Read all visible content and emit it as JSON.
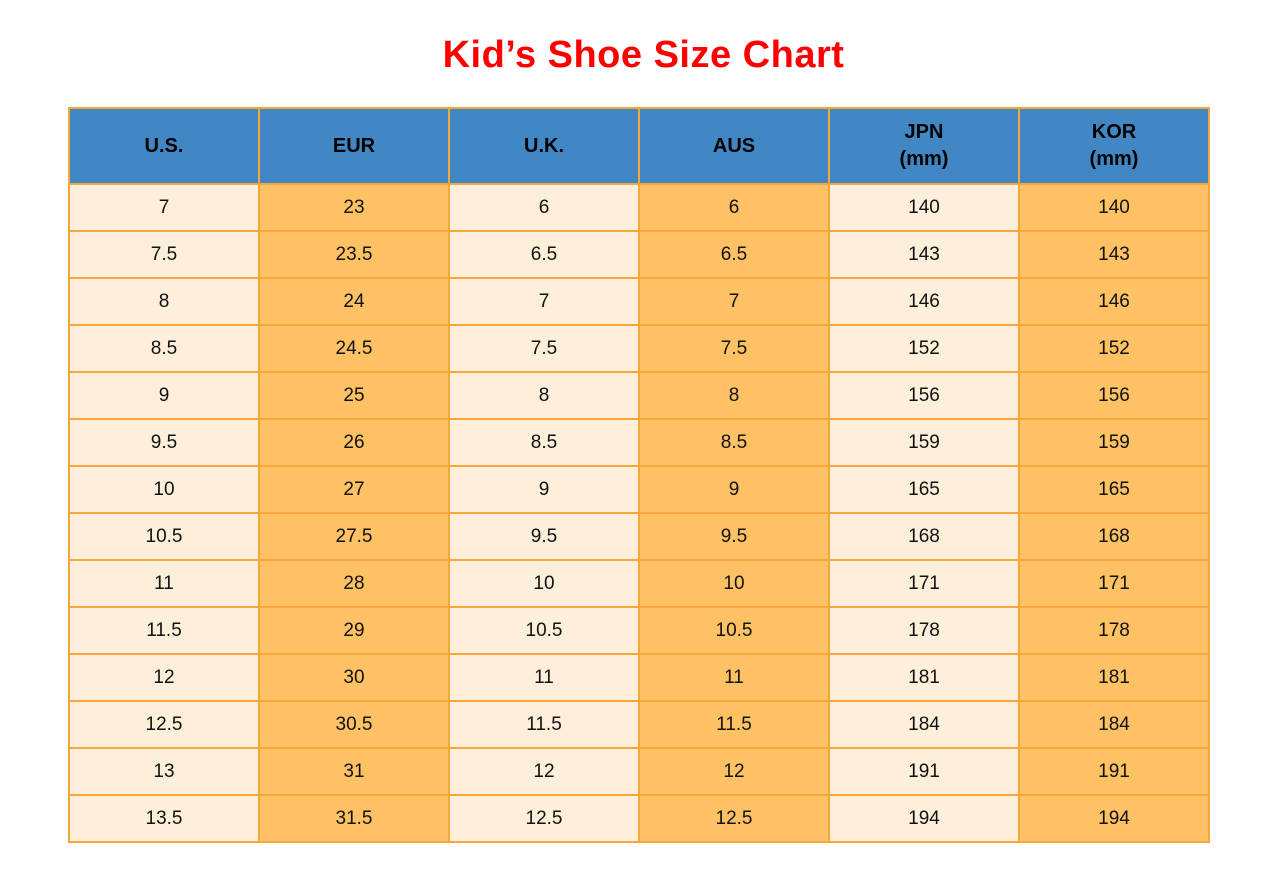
{
  "title": "Kid’s Shoe Size Chart",
  "colors": {
    "title_color": "#fe0000",
    "header_bg": "#4187c4",
    "cell_cream": "#fdefd9",
    "cell_orange": "#fec164",
    "border_color": "#f7a63b",
    "text_color": "#111111"
  },
  "chart_data": {
    "type": "table",
    "title": "Kid’s Shoe Size Chart",
    "columns": [
      {
        "label": "U.S.",
        "sub": ""
      },
      {
        "label": "EUR",
        "sub": ""
      },
      {
        "label": "U.K.",
        "sub": ""
      },
      {
        "label": "AUS",
        "sub": ""
      },
      {
        "label": "JPN",
        "sub": "(mm)"
      },
      {
        "label": "KOR",
        "sub": "(mm)"
      }
    ],
    "rows": [
      [
        "7",
        "23",
        "6",
        "6",
        "140",
        "140"
      ],
      [
        "7.5",
        "23.5",
        "6.5",
        "6.5",
        "143",
        "143"
      ],
      [
        "8",
        "24",
        "7",
        "7",
        "146",
        "146"
      ],
      [
        "8.5",
        "24.5",
        "7.5",
        "7.5",
        "152",
        "152"
      ],
      [
        "9",
        "25",
        "8",
        "8",
        "156",
        "156"
      ],
      [
        "9.5",
        "26",
        "8.5",
        "8.5",
        "159",
        "159"
      ],
      [
        "10",
        "27",
        "9",
        "9",
        "165",
        "165"
      ],
      [
        "10.5",
        "27.5",
        "9.5",
        "9.5",
        "168",
        "168"
      ],
      [
        "11",
        "28",
        "10",
        "10",
        "171",
        "171"
      ],
      [
        "11.5",
        "29",
        "10.5",
        "10.5",
        "178",
        "178"
      ],
      [
        "12",
        "30",
        "11",
        "11",
        "181",
        "181"
      ],
      [
        "12.5",
        "30.5",
        "11.5",
        "11.5",
        "184",
        "184"
      ],
      [
        "13",
        "31",
        "12",
        "12",
        "191",
        "191"
      ],
      [
        "13.5",
        "31.5",
        "12.5",
        "12.5",
        "194",
        "194"
      ]
    ]
  }
}
